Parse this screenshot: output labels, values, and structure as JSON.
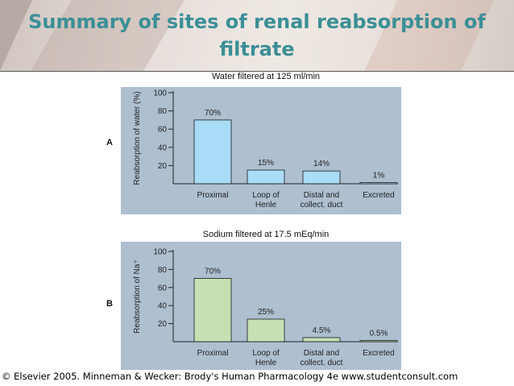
{
  "slide": {
    "title": "Summary of sites of renal reabsorption of filtrate",
    "footer": "© Elsevier 2005. Minneman & Wecker: Brody's Human Pharmacology 4e www.studentconsult.com"
  },
  "colors": {
    "title": "#3b8f96",
    "panel_bg": "#aebfd0",
    "water_bar": "#a9dcf6",
    "sodium_bar": "#c6e0b4"
  },
  "chart_data": [
    {
      "type": "bar",
      "panel_label": "A",
      "title": "Water filtered at 125 ml/min",
      "ylabel": "Reabsorption of water (%)",
      "xlabel": "",
      "ylim": [
        0,
        100
      ],
      "yticks": [
        "20",
        "40",
        "60",
        "80",
        "100"
      ],
      "categories": [
        [
          "Proximal"
        ],
        [
          "Loop of",
          "Henle"
        ],
        [
          "Distal and",
          "collect. duct"
        ],
        [
          "Excreted"
        ]
      ],
      "values": [
        70,
        15,
        14,
        1
      ],
      "data_labels": [
        "70%",
        "15%",
        "14%",
        "1%"
      ]
    },
    {
      "type": "bar",
      "panel_label": "B",
      "title": "Sodium filtered at 17.5 mEq/min",
      "ylabel": "Reabsorption of Na⁺",
      "xlabel": "",
      "ylim": [
        0,
        100
      ],
      "yticks": [
        "20",
        "40",
        "60",
        "80",
        "100"
      ],
      "categories": [
        [
          "Proximal"
        ],
        [
          "Loop of",
          "Henle"
        ],
        [
          "Distal and",
          "collect. duct"
        ],
        [
          "Excreted"
        ]
      ],
      "values": [
        70,
        25,
        4.5,
        0.5
      ],
      "data_labels": [
        "70%",
        "25%",
        "4.5%",
        "0.5%"
      ]
    }
  ]
}
